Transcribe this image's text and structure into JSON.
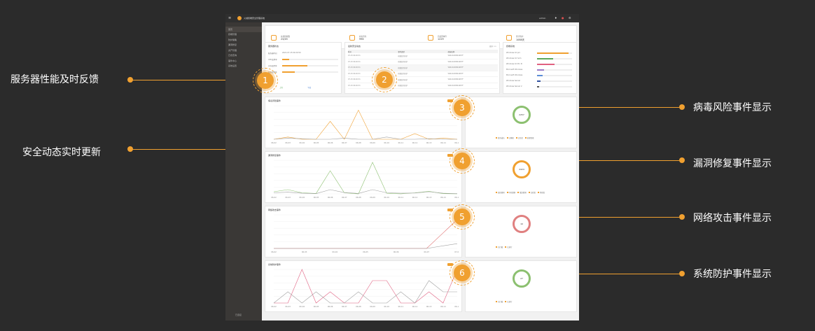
{
  "annotations": {
    "left": [
      "服务器性能及时反馈",
      "安全动态实时更新"
    ],
    "right": [
      "病毒风险事件显示",
      "漏洞修复事件显示",
      "网络攻击事件显示",
      "系统防护事件显示"
    ],
    "badges": [
      "1",
      "2",
      "3",
      "4",
      "5",
      "6"
    ]
  },
  "app": {
    "title": "火绒终端安全管理系统",
    "user": "admin",
    "sidebar": [
      "首页",
      "终端管理",
      "防护策略",
      "漏洞修复",
      "资产管理",
      "日志查询",
      "事件中心",
      "系统设置"
    ],
    "sidebar_footer": "已连接",
    "stats": [
      {
        "label": "在线终端数",
        "value": "23/45"
      },
      {
        "label": "病毒查杀",
        "value": "996"
      },
      {
        "label": "待处理事件",
        "value": "1229"
      },
      {
        "label": "累计防护",
        "value": "1088天"
      }
    ],
    "server": {
      "title": "服务器状态",
      "rows": [
        "服务器时间",
        "CPU使用率",
        "内存使用率",
        "磁盘使用率"
      ],
      "time": "2021-07-15 09:20:50",
      "cpu": 0.12,
      "mem": 0.45,
      "disk": 0.22,
      "net_up": "上传",
      "net_down": "下载"
    },
    "events": {
      "title": "最新安全动态",
      "more": "更多 >>",
      "cols": [
        "时间",
        "事件类型",
        "终端名称"
      ],
      "rows": [
        [
          "07-15 09:20:31",
          "病毒查杀防护",
          "WIN-XC2DBS4KH7F"
        ],
        [
          "07-15 09:20:31",
          "病毒查杀防护",
          "WIN-XC2DBS4KH7F"
        ],
        [
          "07-15 09:20:31",
          "病毒查杀防护",
          "WIN-XC2DBS4KH7F"
        ],
        [
          "07-15 09:20:31",
          "病毒查杀防护",
          "WIN-XC2DBS4KH7F"
        ],
        [
          "07-15 09:20:31",
          "病毒查杀防护",
          "WIN-XC2DBS4KH7F"
        ],
        [
          "07-15 09:20:31",
          "病毒查杀防护",
          "WIN-XC2DBS4KH7F"
        ]
      ]
    },
    "os": {
      "title": "终端系统",
      "items": [
        {
          "name": "Windows 10 pro",
          "v": 0.9,
          "c": "#f0a030"
        },
        {
          "name": "Windows 10 hom",
          "v": 0.45,
          "c": "#5ca85c"
        },
        {
          "name": "Windows 10 Pro N",
          "v": 0.5,
          "c": "#e06080"
        },
        {
          "name": "Microsoft Windows",
          "v": 0.2,
          "c": "#9a7cc8"
        },
        {
          "name": "Microsoft Windows",
          "v": 0.15,
          "c": "#5b8dd6"
        },
        {
          "name": "Windows Server",
          "v": 0.1,
          "c": "#3050a0"
        },
        {
          "name": "Windows Server 2",
          "v": 0.05,
          "c": "#555"
        }
      ]
    },
    "panels": [
      {
        "title": "病毒风险事件",
        "ring": "2257",
        "ring_color": "#8cc070",
        "legend": [
          "查杀成功",
          "已隔离",
          "已信任",
          "处理失败"
        ]
      },
      {
        "title": "漏洞修复事件",
        "ring": "4424",
        "ring_color": "#f0a030",
        "legend": [
          "高危漏洞",
          "中危漏洞",
          "低危漏洞",
          "已修复",
          "待修复"
        ]
      },
      {
        "title": "网络攻击事件",
        "ring": "10",
        "ring_color": "#e08080",
        "legend": [
          "已拦截",
          "已放行"
        ]
      },
      {
        "title": "系统防护事件",
        "ring": "27",
        "ring_color": "#8cc070",
        "legend": [
          "已拦截",
          "已放行"
        ]
      }
    ]
  },
  "chart_data": [
    {
      "type": "line",
      "title": "病毒风险事件",
      "x": [
        "06-02",
        "06-03",
        "06-04",
        "06-05",
        "06-06",
        "06-07",
        "06-08",
        "06-09",
        "06-10",
        "06-11",
        "06-12",
        "06-13",
        "06-14",
        "06-15"
      ],
      "series": [
        {
          "values": [
            0,
            20,
            0,
            0,
            160,
            0,
            260,
            0,
            0,
            0,
            50,
            0,
            10,
            0
          ]
        },
        {
          "values": [
            0,
            10,
            5,
            0,
            0,
            10,
            0,
            0,
            20,
            0,
            0,
            5,
            0,
            0
          ]
        }
      ],
      "ylim": [
        0,
        300
      ]
    },
    {
      "type": "line",
      "title": "漏洞修复事件",
      "x": [
        "06-02",
        "06-03",
        "06-04",
        "06-05",
        "06-06",
        "06-07",
        "06-08",
        "06-09",
        "06-10",
        "06-11",
        "06-12",
        "06-13",
        "06-14",
        "06-15"
      ],
      "series": [
        {
          "values": [
            100,
            200,
            50,
            20,
            1100,
            50,
            0,
            1500,
            30,
            0,
            50,
            120,
            10,
            0
          ]
        },
        {
          "values": [
            50,
            80,
            30,
            10,
            200,
            60,
            20,
            200,
            50,
            30,
            40,
            100,
            30,
            10
          ]
        }
      ],
      "ylim": [
        0,
        1600
      ]
    },
    {
      "type": "line",
      "title": "网络攻击事件",
      "x": [
        "06-02",
        "06-03",
        "06-04",
        "06-05",
        "06-06",
        "06-07",
        "07-01"
      ],
      "series": [
        {
          "values": [
            0,
            0,
            0,
            0,
            0,
            0,
            30
          ]
        },
        {
          "values": [
            0,
            0,
            0,
            0,
            0,
            0,
            5
          ]
        }
      ],
      "ylim": [
        0,
        35
      ]
    },
    {
      "type": "line",
      "title": "系统防护事件",
      "x": [
        "06-02",
        "06-03",
        "06-04",
        "06-05",
        "06-06",
        "06-07",
        "06-08",
        "06-09",
        "06-10",
        "06-11",
        "06-12",
        "06-13",
        "06-14",
        "06-15"
      ],
      "series": [
        {
          "values": [
            0,
            0,
            3,
            0,
            1,
            0,
            0,
            2,
            2,
            0,
            0,
            1,
            0,
            3
          ]
        },
        {
          "values": [
            0,
            1,
            0,
            1,
            0,
            0,
            1,
            0,
            0,
            1,
            0,
            2,
            1,
            1
          ]
        }
      ],
      "ylim": [
        0,
        3
      ]
    }
  ]
}
